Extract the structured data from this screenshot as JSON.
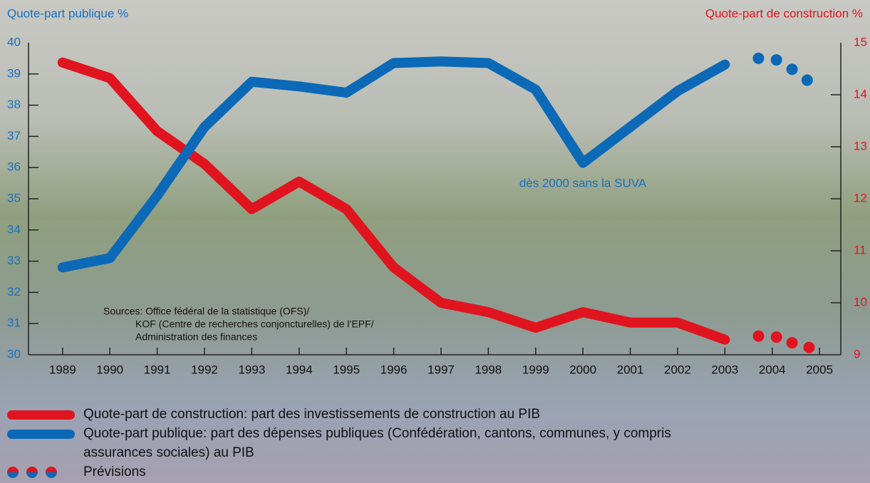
{
  "chart_data": {
    "type": "line",
    "y_label": "Quote-part publique %",
    "y2_label": "Quote-part de construction %",
    "x": [
      1989,
      1990,
      1991,
      1992,
      1993,
      1994,
      1995,
      1996,
      1997,
      1998,
      1999,
      2000,
      2001,
      2002,
      2003
    ],
    "xlim": [
      1988.28,
      2005.45
    ],
    "xticks": [
      1989,
      1990,
      1991,
      1992,
      1993,
      1994,
      1995,
      1996,
      1997,
      1998,
      1999,
      2000,
      2001,
      2002,
      2003,
      2004,
      2005
    ],
    "ylim": [
      30,
      40
    ],
    "yticks": [
      30,
      31,
      32,
      33,
      34,
      35,
      36,
      37,
      38,
      39,
      40
    ],
    "y2lim": [
      9,
      15
    ],
    "y2ticks": [
      9,
      10,
      11,
      12,
      13,
      14,
      15
    ],
    "series": [
      {
        "name": "Quote-part de construction: part des investissements de construction au PIB",
        "color": "#e0141e",
        "axis": "y2",
        "values": [
          14.62,
          14.32,
          13.3,
          12.67,
          11.8,
          12.33,
          11.8,
          10.68,
          10.0,
          9.82,
          9.52,
          9.82,
          9.62,
          9.62,
          9.29
        ],
        "forecast_x": [
          2003.71,
          2004.09,
          2004.42,
          2004.78
        ],
        "forecast_values": [
          9.36,
          9.34,
          9.23,
          9.14
        ]
      },
      {
        "name": "Quote-part publique: part des dépenses publiques (Confédération, cantons, communes, y compris assurances sociales) au PIB",
        "color": "#0b69b7",
        "axis": "y",
        "values": [
          32.8,
          33.1,
          35.1,
          37.3,
          38.75,
          38.6,
          38.4,
          39.35,
          39.4,
          39.35,
          38.5,
          36.15,
          37.3,
          38.45,
          39.3
        ],
        "forecast_x": [
          2003.71,
          2004.09,
          2004.42,
          2004.74
        ],
        "forecast_values": [
          39.5,
          39.45,
          39.15,
          38.8
        ]
      }
    ],
    "forecast_label": "Prévisions",
    "annotations": [
      "dès 2000 sans la SUVA",
      "Sources: Office fédéral de la statistique (OFS)/",
      "KOF (Centre de recherches conjoncturelles) de l’EPF/",
      "Administration des finances"
    ]
  }
}
